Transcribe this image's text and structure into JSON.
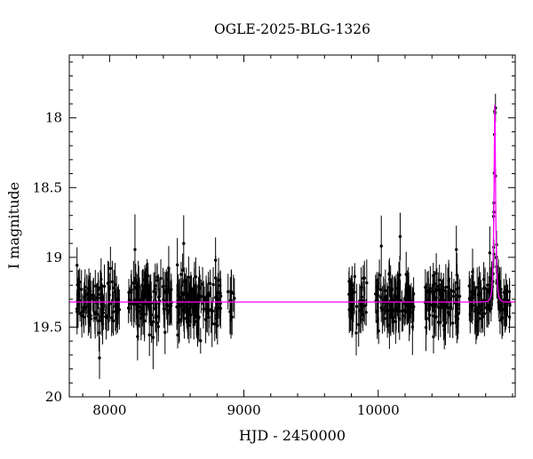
{
  "figure": {
    "title": "OGLE-2025-BLG-1326"
  },
  "chart_data": {
    "type": "scatter",
    "title": "OGLE-2025-BLG-1326",
    "xlabel": "HJD - 2450000",
    "ylabel": "I magnitude",
    "xlim": [
      7700,
      11020
    ],
    "ylim": [
      17.55,
      20.0
    ],
    "y_axis_inverted": true,
    "x_major_ticks": [
      8000,
      9000,
      10000
    ],
    "x_tick_labels": [
      "8000",
      "9000",
      "10000"
    ],
    "x_minor_step": 200,
    "y_major_ticks": [
      18,
      18.5,
      19,
      19.5,
      20
    ],
    "y_tick_labels": [
      "18",
      "18.5",
      "19",
      "19.5",
      "20"
    ],
    "y_minor_step": 0.1,
    "grid": false,
    "legend": false,
    "point_color": "#000000",
    "model_color": "#ff00ff",
    "model": {
      "type": "paczynski_microlensing",
      "baseline_mag": 19.32,
      "t0": 10868,
      "tE": 13,
      "u0": 0.28,
      "peak_mag": 17.91
    },
    "scatter_sigma_mag": 0.09,
    "errorbar_mag": {
      "mean": 0.13,
      "spread": 0.08
    },
    "seasons": [
      {
        "x_start": 7755,
        "x_end": 8075,
        "n": 95
      },
      {
        "x_start": 8140,
        "x_end": 8465,
        "n": 110
      },
      {
        "x_start": 8500,
        "x_end": 8830,
        "n": 120
      },
      {
        "x_start": 8880,
        "x_end": 8930,
        "n": 10
      },
      {
        "x_start": 9780,
        "x_end": 9915,
        "n": 40
      },
      {
        "x_start": 9980,
        "x_end": 10270,
        "n": 100
      },
      {
        "x_start": 10340,
        "x_end": 10610,
        "n": 90
      },
      {
        "x_start": 10675,
        "x_end": 10985,
        "n": 105
      },
      {
        "x_start": 10845,
        "x_end": 10895,
        "n": 8
      }
    ],
    "rng_seed": 42
  }
}
